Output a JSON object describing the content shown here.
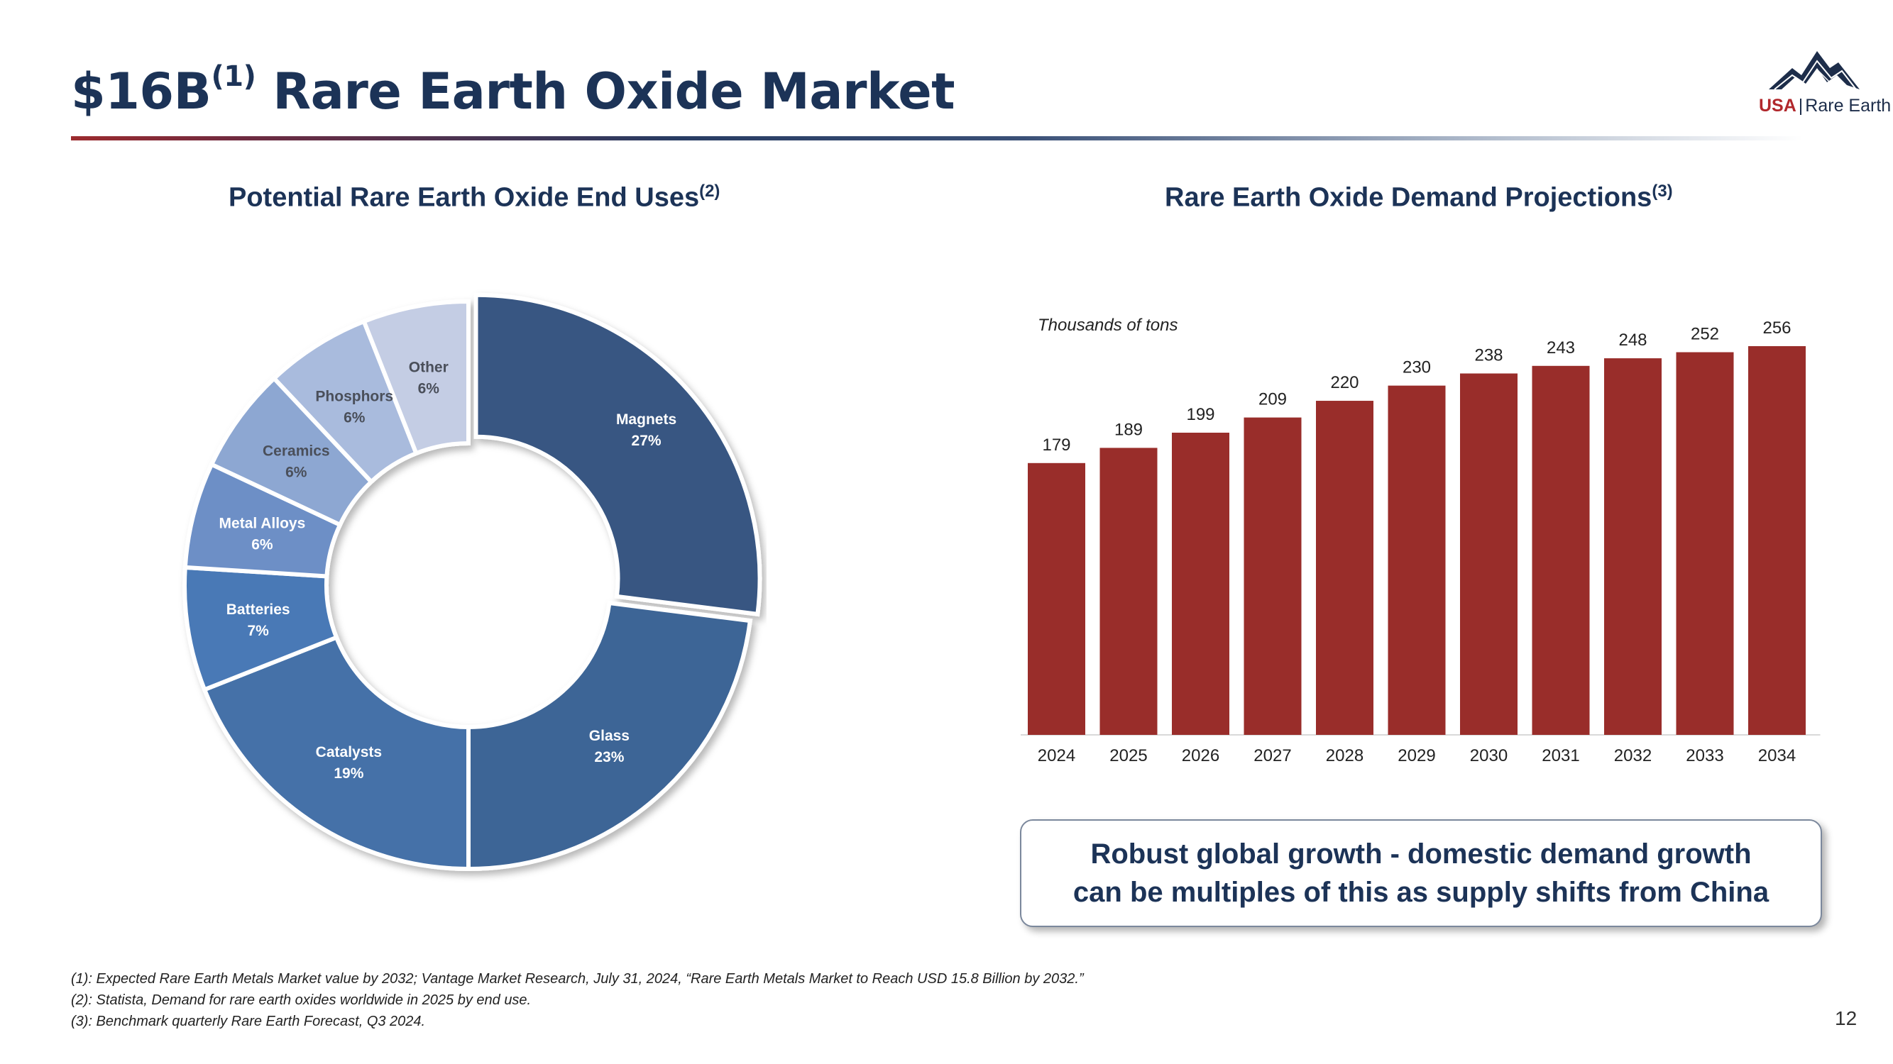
{
  "header": {
    "title": "$16B",
    "title_ref": "(1)",
    "title_rest": " Rare Earth Oxide Market",
    "logo_brand": "USA",
    "logo_sep": "|",
    "logo_name": "Rare Earth"
  },
  "left_panel": {
    "title": "Potential Rare Earth Oxide End Uses",
    "ref": "(2)"
  },
  "right_panel": {
    "title": "Rare Earth Oxide Demand Projections",
    "ref": "(3)",
    "units": "Thousands of tons"
  },
  "colors": {
    "navy": "#1c3357",
    "bar": "#992d2a",
    "accent_red": "#b1282c"
  },
  "chart_data": [
    {
      "type": "pie",
      "title": "Potential Rare Earth Oxide End Uses",
      "hole": true,
      "slices": [
        {
          "label": "Magnets",
          "value": 27,
          "display": "27%",
          "color": "#375782"
        },
        {
          "label": "Glass",
          "value": 23,
          "display": "23%",
          "color": "#3e6596"
        },
        {
          "label": "Catalysts",
          "value": 19,
          "display": "19%",
          "color": "#4571a8"
        },
        {
          "label": "Batteries",
          "value": 7,
          "display": "7%",
          "color": "#4a79b6"
        },
        {
          "label": "Metal Alloys",
          "value": 6,
          "display": "6%",
          "color": "#6d8fc6"
        },
        {
          "label": "Ceramics",
          "value": 6,
          "display": "6%",
          "color": "#8da7d2"
        },
        {
          "label": "Phosphors",
          "value": 6,
          "display": "6%",
          "color": "#a9bbdd"
        },
        {
          "label": "Other",
          "value": 6,
          "display": "6%",
          "color": "#c4cde4"
        }
      ]
    },
    {
      "type": "bar",
      "title": "Rare Earth Oxide Demand Projections",
      "ylabel": "Thousands of tons",
      "categories": [
        "2024",
        "2025",
        "2026",
        "2027",
        "2028",
        "2029",
        "2030",
        "2031",
        "2032",
        "2033",
        "2034"
      ],
      "values": [
        179,
        189,
        199,
        209,
        220,
        230,
        238,
        243,
        248,
        252,
        256
      ],
      "ylim": [
        0,
        270
      ]
    }
  ],
  "callout": {
    "line1": "Robust global growth - domestic demand growth",
    "line2": "can be multiples of this as supply shifts from China"
  },
  "footnotes": [
    "(1): Expected Rare Earth Metals Market value by 2032; Vantage Market Research, July 31, 2024, “Rare Earth Metals Market to Reach USD 15.8 Billion by 2032.”",
    "(2): Statista, Demand for rare earth oxides worldwide in 2025 by end use.",
    "(3): Benchmark quarterly Rare Earth Forecast, Q3 2024."
  ],
  "page_number": "12"
}
